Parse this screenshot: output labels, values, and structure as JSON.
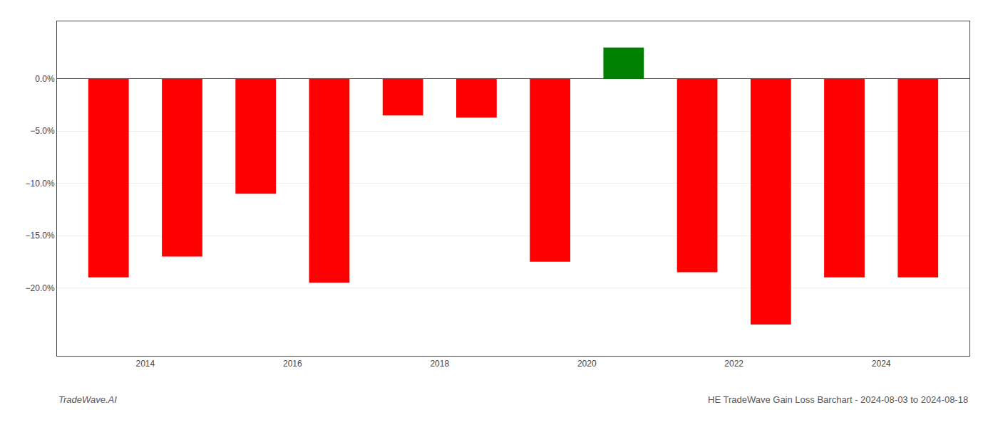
{
  "chart_data": {
    "type": "bar",
    "x": [
      2013,
      2014,
      2015,
      2016,
      2017,
      2018,
      2019,
      2020,
      2021,
      2022,
      2023,
      2024
    ],
    "values": [
      -0.19,
      -0.17,
      -0.11,
      -0.195,
      -0.035,
      -0.037,
      -0.175,
      0.03,
      -0.185,
      -0.235,
      -0.19,
      -0.19
    ],
    "colors": [
      "#ff0000",
      "#ff0000",
      "#ff0000",
      "#ff0000",
      "#ff0000",
      "#ff0000",
      "#ff0000",
      "#008000",
      "#ff0000",
      "#ff0000",
      "#ff0000",
      "#ff0000"
    ],
    "xlim": [
      2012.3,
      2024.7
    ],
    "xticks": [
      {
        "value": 2013.5,
        "label": "2014"
      },
      {
        "value": 2015.5,
        "label": "2016"
      },
      {
        "value": 2017.5,
        "label": "2018"
      },
      {
        "value": 2019.5,
        "label": "2020"
      },
      {
        "value": 2021.5,
        "label": "2022"
      },
      {
        "value": 2023.5,
        "label": "2024"
      }
    ],
    "ylim": [
      -0.265,
      0.055
    ],
    "yticks": [
      {
        "value": 0.0,
        "label": "0.0%"
      },
      {
        "value": -0.05,
        "label": "−5.0%"
      },
      {
        "value": -0.1,
        "label": "−10.0%"
      },
      {
        "value": -0.15,
        "label": "−15.0%"
      },
      {
        "value": -0.2,
        "label": "−20.0%"
      }
    ],
    "grid": true,
    "annotations": [
      "TradeWave.AI",
      "HE TradeWave Gain Loss Barchart - 2024-08-03 to 2024-08-18"
    ]
  }
}
